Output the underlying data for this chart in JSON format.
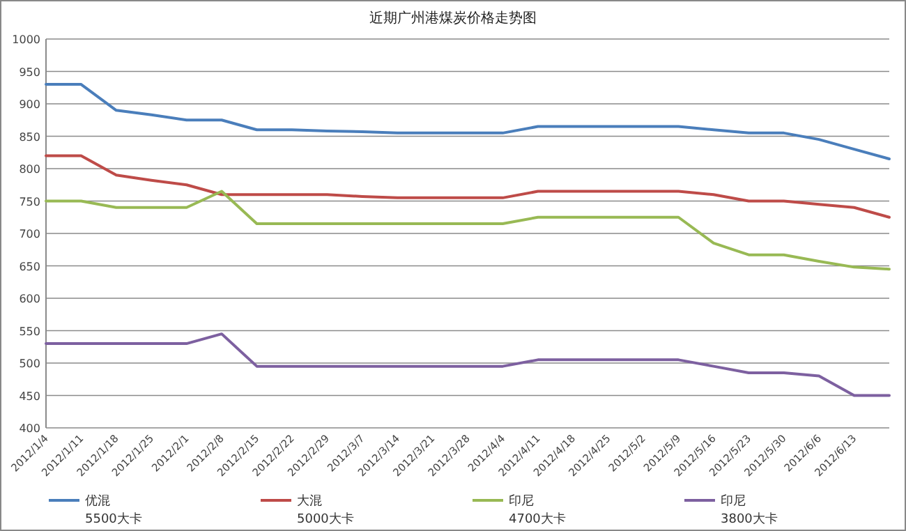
{
  "chart_data": {
    "type": "line",
    "title": "近期广州港煤炭价格走势图",
    "categories": [
      "2012/1/4",
      "2012/1/11",
      "2012/1/18",
      "2012/1/25",
      "2012/2/1",
      "2012/2/8",
      "2012/2/15",
      "2012/2/22",
      "2012/2/29",
      "2012/3/7",
      "2012/3/14",
      "2012/3/21",
      "2012/3/28",
      "2012/4/4",
      "2012/4/11",
      "2012/4/18",
      "2012/4/25",
      "2012/5/2",
      "2012/5/9",
      "2012/5/16",
      "2012/5/23",
      "2012/5/30",
      "2012/6/6",
      "2012/6/13",
      null
    ],
    "series": [
      {
        "name": "优混\n5500大卡",
        "color": "#4a7ebb",
        "values": [
          930,
          930,
          890,
          883,
          875,
          875,
          860,
          860,
          858,
          857,
          855,
          855,
          855,
          855,
          865,
          865,
          865,
          865,
          865,
          860,
          855,
          855,
          845,
          830,
          815
        ]
      },
      {
        "name": "大混\n5000大卡",
        "color": "#be4b48",
        "values": [
          820,
          820,
          790,
          782,
          775,
          760,
          760,
          760,
          760,
          757,
          755,
          755,
          755,
          755,
          765,
          765,
          765,
          765,
          765,
          760,
          750,
          750,
          745,
          740,
          725
        ]
      },
      {
        "name": "印尼\n4700大卡",
        "color": "#98b954",
        "values": [
          750,
          750,
          740,
          740,
          740,
          765,
          715,
          715,
          715,
          715,
          715,
          715,
          715,
          715,
          725,
          725,
          725,
          725,
          725,
          685,
          667,
          667,
          657,
          648,
          645
        ]
      },
      {
        "name": "印尼\n3800大卡",
        "color": "#7d60a0",
        "values": [
          530,
          530,
          530,
          530,
          530,
          545,
          495,
          495,
          495,
          495,
          495,
          495,
          495,
          495,
          505,
          505,
          505,
          505,
          505,
          495,
          485,
          485,
          480,
          450,
          450
        ]
      }
    ],
    "ylim": [
      400,
      1000
    ],
    "yticks": [
      400,
      450,
      500,
      550,
      600,
      650,
      700,
      750,
      800,
      850,
      900,
      950,
      1000
    ],
    "grid": "y",
    "legend": "bottom",
    "marker": "none",
    "line_style": "solid"
  }
}
